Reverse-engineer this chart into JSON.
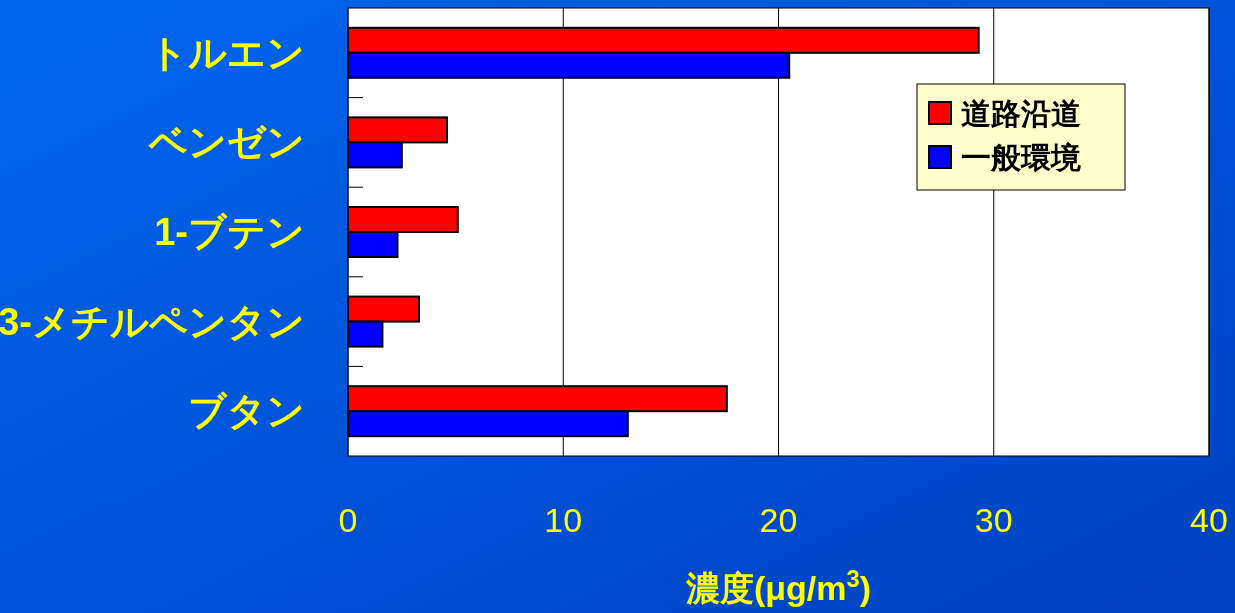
{
  "chart_data": {
    "type": "bar",
    "orientation": "horizontal",
    "categories": [
      "トルエン",
      "ベンゼン",
      "1-ブテン",
      "3-メチルペンタン",
      "ブタン"
    ],
    "series": [
      {
        "name": "道路沿道",
        "color": "#ff0000",
        "values": [
          29.3,
          4.6,
          5.1,
          3.3,
          17.6
        ]
      },
      {
        "name": "一般環境",
        "color": "#0000ff",
        "values": [
          20.5,
          2.5,
          2.3,
          1.6,
          13.0
        ]
      }
    ],
    "xlim": [
      0,
      40
    ],
    "xticks": [
      0,
      10,
      20,
      30,
      40
    ],
    "xlabel": "濃度(μg/m$^{3}$)",
    "grid": "x",
    "legend": "top right"
  }
}
